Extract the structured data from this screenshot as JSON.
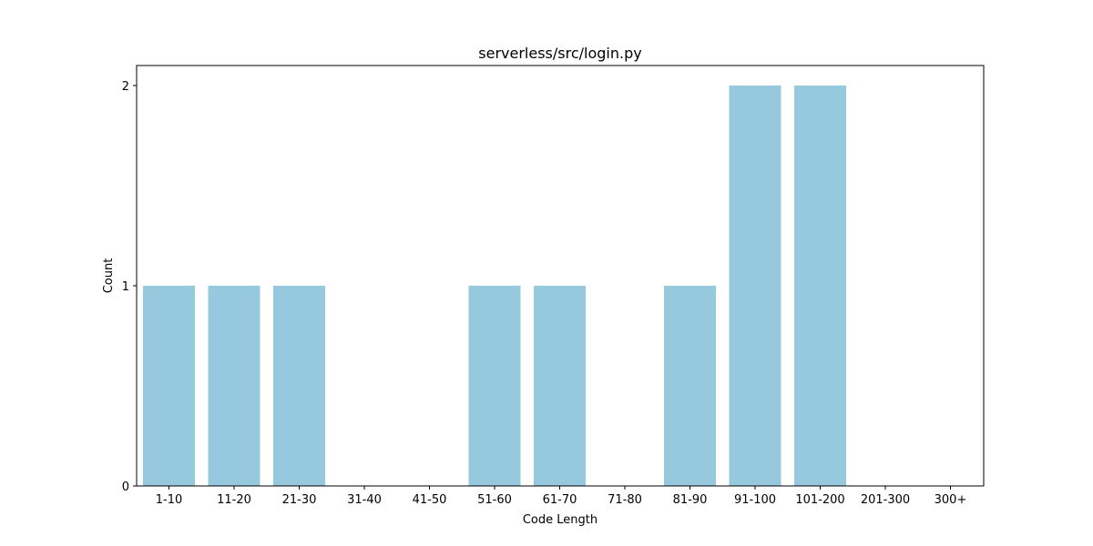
{
  "chart_data": {
    "type": "bar",
    "title": "serverless/src/login.py",
    "xlabel": "Code Length",
    "ylabel": "Count",
    "categories": [
      "1-10",
      "11-20",
      "21-30",
      "31-40",
      "41-50",
      "51-60",
      "61-70",
      "71-80",
      "81-90",
      "91-100",
      "101-200",
      "201-300",
      "300+"
    ],
    "values": [
      1,
      1,
      1,
      0,
      0,
      1,
      1,
      0,
      1,
      2,
      2,
      0,
      0
    ],
    "yticks": [
      0,
      1,
      2
    ],
    "ylim": [
      0,
      2.1
    ],
    "bar_color": "#96c9de",
    "grid": false,
    "legend": "none"
  }
}
